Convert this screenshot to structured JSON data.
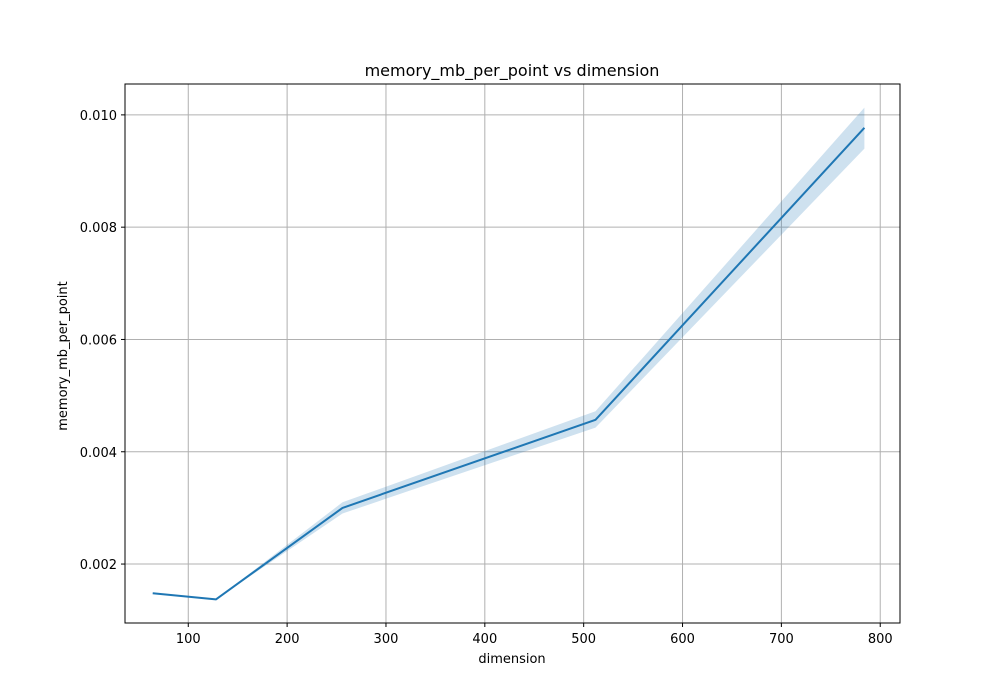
{
  "chart_data": {
    "type": "line",
    "title": "memory_mb_per_point vs dimension",
    "xlabel": "dimension",
    "ylabel": "memory_mb_per_point",
    "xlim": [
      36,
      820
    ],
    "ylim": [
      0.00095,
      0.01055
    ],
    "xticks": [
      100,
      200,
      300,
      400,
      500,
      600,
      700,
      800
    ],
    "yticks": [
      0.002,
      0.004,
      0.006,
      0.008,
      0.01
    ],
    "ytick_labels": [
      "0.002",
      "0.004",
      "0.006",
      "0.008",
      "0.010"
    ],
    "grid": true,
    "legend": "none",
    "series": [
      {
        "x": [
          64,
          128,
          256,
          512,
          784
        ],
        "y": [
          0.00148,
          0.00137,
          0.003,
          0.00457,
          0.00977
        ],
        "ci_lower": [
          0.00148,
          0.00137,
          0.0029,
          0.00443,
          0.0094
        ],
        "ci_upper": [
          0.00148,
          0.00137,
          0.0031,
          0.00472,
          0.01013
        ],
        "color": "#1f77b4"
      }
    ]
  }
}
